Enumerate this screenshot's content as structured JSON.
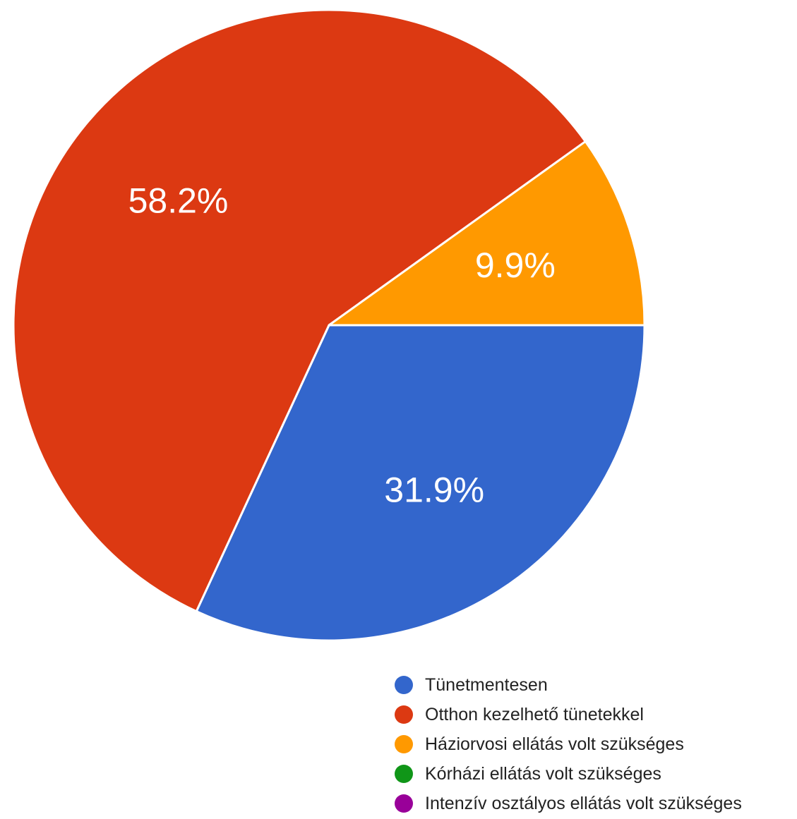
{
  "chart_data": {
    "type": "pie",
    "title": "",
    "legend_position": "bottom-right",
    "categories": [
      "Tünetmentesen",
      "Otthon kezelhető tünetekkel",
      "Háziorvosi ellátás volt szükséges",
      "Kórházi ellátás volt szükséges",
      "Intenzív osztályos ellátás volt szükséges"
    ],
    "values": [
      31.9,
      58.2,
      9.9,
      0,
      0
    ],
    "value_labels": [
      "31.9%",
      "58.2%",
      "9.9%",
      "",
      ""
    ],
    "colors": [
      "#3366CC",
      "#DC3912",
      "#FF9900",
      "#109618",
      "#990099"
    ]
  }
}
